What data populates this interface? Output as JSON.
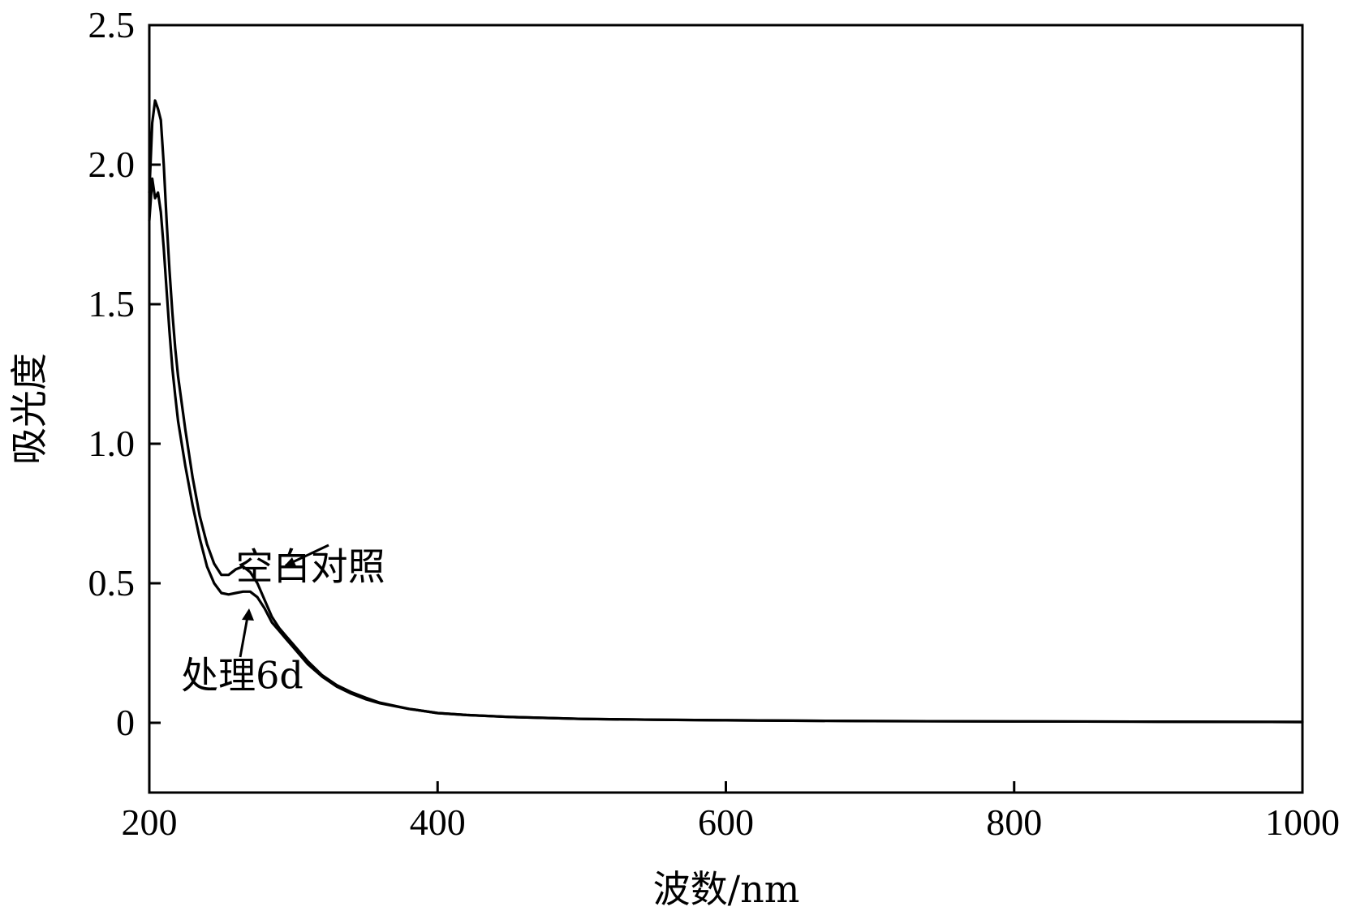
{
  "chart_data": {
    "type": "line",
    "xlabel": "波数/nm",
    "ylabel": "吸光度",
    "xlim": [
      200,
      1000
    ],
    "ylim": [
      -0.25,
      2.5
    ],
    "xticks": [
      "200",
      "400",
      "600",
      "800",
      "1000"
    ],
    "yticks": [
      "0",
      "0.5",
      "1.0",
      "1.5",
      "2.0",
      "2.5"
    ],
    "grid": false,
    "line_color": "#000000",
    "annotations": [
      {
        "text": "空白对照",
        "x": 260,
        "y": 0.56
      },
      {
        "text": "处理6d",
        "x": 222,
        "y": 0.17
      }
    ],
    "series": [
      {
        "x": [
          200,
          202,
          204,
          206,
          208,
          210,
          212,
          214,
          216,
          218,
          220,
          225,
          230,
          235,
          240,
          245,
          250,
          255,
          260,
          265,
          270,
          275,
          280,
          285,
          290,
          295,
          300,
          310,
          320,
          330,
          340,
          350,
          360,
          380,
          400,
          420,
          450,
          500,
          550,
          600,
          700,
          800,
          900,
          1000
        ],
        "y": [
          1.9,
          2.15,
          2.23,
          2.2,
          2.16,
          2.0,
          1.8,
          1.62,
          1.47,
          1.34,
          1.24,
          1.05,
          0.88,
          0.74,
          0.64,
          0.57,
          0.53,
          0.53,
          0.55,
          0.56,
          0.54,
          0.5,
          0.44,
          0.38,
          0.34,
          0.31,
          0.28,
          0.22,
          0.17,
          0.135,
          0.11,
          0.09,
          0.072,
          0.05,
          0.035,
          0.028,
          0.021,
          0.014,
          0.011,
          0.009,
          0.006,
          0.005,
          0.004,
          0.003
        ]
      },
      {
        "x": [
          200,
          202,
          204,
          206,
          208,
          210,
          212,
          214,
          216,
          218,
          220,
          225,
          230,
          235,
          240,
          245,
          250,
          255,
          260,
          265,
          270,
          275,
          280,
          285,
          290,
          295,
          300,
          310,
          320,
          330,
          340,
          350,
          360,
          380,
          400,
          420,
          450,
          500,
          550,
          600,
          700,
          800,
          900,
          1000
        ],
        "y": [
          1.8,
          1.95,
          1.88,
          1.9,
          1.83,
          1.7,
          1.55,
          1.4,
          1.27,
          1.17,
          1.08,
          0.92,
          0.78,
          0.66,
          0.56,
          0.5,
          0.465,
          0.46,
          0.465,
          0.47,
          0.47,
          0.45,
          0.41,
          0.36,
          0.33,
          0.3,
          0.27,
          0.21,
          0.165,
          0.13,
          0.105,
          0.085,
          0.07,
          0.05,
          0.035,
          0.028,
          0.021,
          0.014,
          0.011,
          0.009,
          0.006,
          0.005,
          0.004,
          0.003
        ]
      }
    ]
  }
}
